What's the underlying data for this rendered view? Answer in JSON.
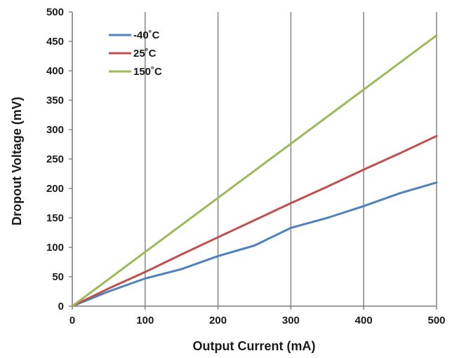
{
  "chart_data": {
    "type": "line",
    "title": "",
    "xlabel": "Output Current (mA)",
    "ylabel": "Dropout Voltage (mV)",
    "xlim": [
      0,
      500
    ],
    "ylim": [
      0,
      500
    ],
    "x_ticks": [
      0,
      100,
      200,
      300,
      400,
      500
    ],
    "y_ticks": [
      0,
      50,
      100,
      150,
      200,
      250,
      300,
      350,
      400,
      450,
      500
    ],
    "grid": "vertical-major",
    "legend_position": "top-left",
    "series": [
      {
        "name": "-40˚C",
        "color": "#4f81bd",
        "x": [
          0,
          50,
          100,
          150,
          200,
          250,
          300,
          350,
          400,
          450,
          500
        ],
        "y": [
          0,
          25,
          47,
          63,
          85,
          103,
          133,
          150,
          170,
          192,
          210
        ]
      },
      {
        "name": "25˚C",
        "color": "#c0504d",
        "x": [
          0,
          50,
          100,
          150,
          200,
          250,
          300,
          350,
          400,
          450,
          500
        ],
        "y": [
          0,
          30,
          58,
          88,
          117,
          146,
          175,
          203,
          232,
          260,
          289
        ]
      },
      {
        "name": "150˚C",
        "color": "#9bbb59",
        "x": [
          0,
          50,
          100,
          150,
          200,
          250,
          300,
          350,
          400,
          450,
          500
        ],
        "y": [
          0,
          46,
          92,
          138,
          184,
          230,
          276,
          322,
          368,
          414,
          460
        ]
      }
    ]
  }
}
